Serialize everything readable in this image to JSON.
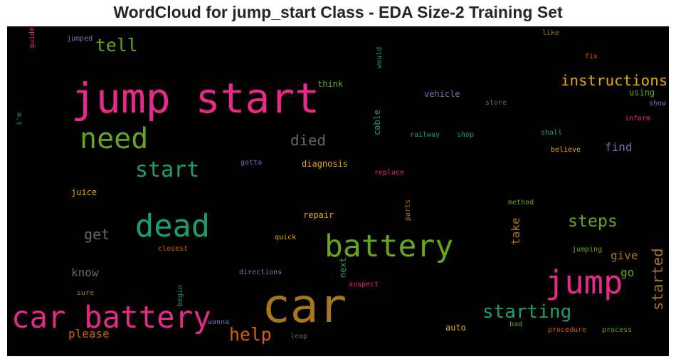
{
  "chart_data": {
    "type": "wordcloud",
    "title": "WordCloud for jump_start Class - EDA Size-2 Training Set",
    "background": "#000000",
    "palette": [
      "#e7298a",
      "#1b9e77",
      "#66a61e",
      "#a6761d",
      "#d95f02",
      "#e6ab02",
      "#7570b3",
      "#666666"
    ],
    "words": [
      {
        "text": "jump start",
        "weight": 1.0,
        "color": "#e7298a",
        "vertical": false
      },
      {
        "text": "car",
        "weight": 0.95,
        "color": "#a6761d",
        "vertical": false
      },
      {
        "text": "jump",
        "weight": 0.78,
        "color": "#e7298a",
        "vertical": false
      },
      {
        "text": "dead",
        "weight": 0.72,
        "color": "#1b9e77",
        "vertical": false
      },
      {
        "text": "battery",
        "weight": 0.7,
        "color": "#66a61e",
        "vertical": false
      },
      {
        "text": "car battery",
        "weight": 0.68,
        "color": "#e7298a",
        "vertical": false
      },
      {
        "text": "need",
        "weight": 0.6,
        "color": "#66a61e",
        "vertical": false
      },
      {
        "text": "start",
        "weight": 0.55,
        "color": "#1b9e77",
        "vertical": false
      },
      {
        "text": "starting",
        "weight": 0.45,
        "color": "#1b9e77",
        "vertical": false
      },
      {
        "text": "help",
        "weight": 0.42,
        "color": "#d95f02",
        "vertical": false
      },
      {
        "text": "tell",
        "weight": 0.42,
        "color": "#66a61e",
        "vertical": false
      },
      {
        "text": "steps",
        "weight": 0.38,
        "color": "#66a61e",
        "vertical": false
      },
      {
        "text": "instructions",
        "weight": 0.32,
        "color": "#e6ab02",
        "vertical": false
      },
      {
        "text": "died",
        "weight": 0.32,
        "color": "#666666",
        "vertical": false
      },
      {
        "text": "started",
        "weight": 0.32,
        "color": "#a6761d",
        "vertical": true
      },
      {
        "text": "get",
        "weight": 0.3,
        "color": "#666666",
        "vertical": false
      },
      {
        "text": "please",
        "weight": 0.28,
        "color": "#d95f02",
        "vertical": false
      },
      {
        "text": "know",
        "weight": 0.27,
        "color": "#666666",
        "vertical": false
      },
      {
        "text": "take",
        "weight": 0.27,
        "color": "#a6761d",
        "vertical": true
      },
      {
        "text": "find",
        "weight": 0.24,
        "color": "#7570b3",
        "vertical": false
      },
      {
        "text": "go",
        "weight": 0.22,
        "color": "#66a61e",
        "vertical": false
      },
      {
        "text": "give",
        "weight": 0.2,
        "color": "#a6761d",
        "vertical": false
      },
      {
        "text": "vehicle",
        "weight": 0.18,
        "color": "#7570b3",
        "vertical": false
      },
      {
        "text": "diagnosis",
        "weight": 0.18,
        "color": "#e6ab02",
        "vertical": false
      },
      {
        "text": "using",
        "weight": 0.17,
        "color": "#66a61e",
        "vertical": false
      },
      {
        "text": "juice",
        "weight": 0.16,
        "color": "#e6ab02",
        "vertical": false
      },
      {
        "text": "repair",
        "weight": 0.16,
        "color": "#e6ab02",
        "vertical": false
      },
      {
        "text": "think",
        "weight": 0.16,
        "color": "#66a61e",
        "vertical": false
      },
      {
        "text": "cable",
        "weight": 0.16,
        "color": "#1b9e77",
        "vertical": true
      },
      {
        "text": "auto",
        "weight": 0.16,
        "color": "#e6ab02",
        "vertical": false
      },
      {
        "text": "next",
        "weight": 0.15,
        "color": "#1b9e77",
        "vertical": true
      },
      {
        "text": "sure",
        "weight": 0.14,
        "color": "#a6761d",
        "vertical": false
      },
      {
        "text": "shop",
        "weight": 0.12,
        "color": "#1b9e77",
        "vertical": false
      },
      {
        "text": "railway",
        "weight": 0.12,
        "color": "#1b9e77",
        "vertical": false
      },
      {
        "text": "replace",
        "weight": 0.12,
        "color": "#e7298a",
        "vertical": false
      },
      {
        "text": "shall",
        "weight": 0.12,
        "color": "#1b9e77",
        "vertical": false
      },
      {
        "text": "believe",
        "weight": 0.12,
        "color": "#e6ab02",
        "vertical": false
      },
      {
        "text": "store",
        "weight": 0.12,
        "color": "#666666",
        "vertical": false
      },
      {
        "text": "inform",
        "weight": 0.12,
        "color": "#e7298a",
        "vertical": false
      },
      {
        "text": "show",
        "weight": 0.12,
        "color": "#7570b3",
        "vertical": false
      },
      {
        "text": "fix",
        "weight": 0.12,
        "color": "#d95f02",
        "vertical": false
      },
      {
        "text": "like",
        "weight": 0.12,
        "color": "#a6761d",
        "vertical": false
      },
      {
        "text": "would",
        "weight": 0.11,
        "color": "#1b9e77",
        "vertical": true
      },
      {
        "text": "jumped",
        "weight": 0.11,
        "color": "#7570b3",
        "vertical": false
      },
      {
        "text": "guide",
        "weight": 0.11,
        "color": "#e7298a",
        "vertical": true
      },
      {
        "text": "i'm",
        "weight": 0.11,
        "color": "#1b9e77",
        "vertical": true
      },
      {
        "text": "gotta",
        "weight": 0.1,
        "color": "#7570b3",
        "vertical": false
      },
      {
        "text": "method",
        "weight": 0.12,
        "color": "#66a61e",
        "vertical": false
      },
      {
        "text": "parts",
        "weight": 0.1,
        "color": "#a6761d",
        "vertical": true
      },
      {
        "text": "quick",
        "weight": 0.12,
        "color": "#e6ab02",
        "vertical": false
      },
      {
        "text": "closest",
        "weight": 0.12,
        "color": "#d95f02",
        "vertical": false
      },
      {
        "text": "directions",
        "weight": 0.12,
        "color": "#7570b3",
        "vertical": false
      },
      {
        "text": "jumping",
        "weight": 0.12,
        "color": "#66a61e",
        "vertical": false
      },
      {
        "text": "suspect",
        "weight": 0.12,
        "color": "#e7298a",
        "vertical": false
      },
      {
        "text": "begin",
        "weight": 0.1,
        "color": "#1b9e77",
        "vertical": true
      },
      {
        "text": "wanna",
        "weight": 0.12,
        "color": "#7570b3",
        "vertical": false
      },
      {
        "text": "leap",
        "weight": 0.11,
        "color": "#666666",
        "vertical": false
      },
      {
        "text": "bad",
        "weight": 0.11,
        "color": "#66a61e",
        "vertical": false
      },
      {
        "text": "procedure",
        "weight": 0.12,
        "color": "#d95f02",
        "vertical": false
      },
      {
        "text": "process",
        "weight": 0.12,
        "color": "#66a61e",
        "vertical": false
      }
    ]
  }
}
